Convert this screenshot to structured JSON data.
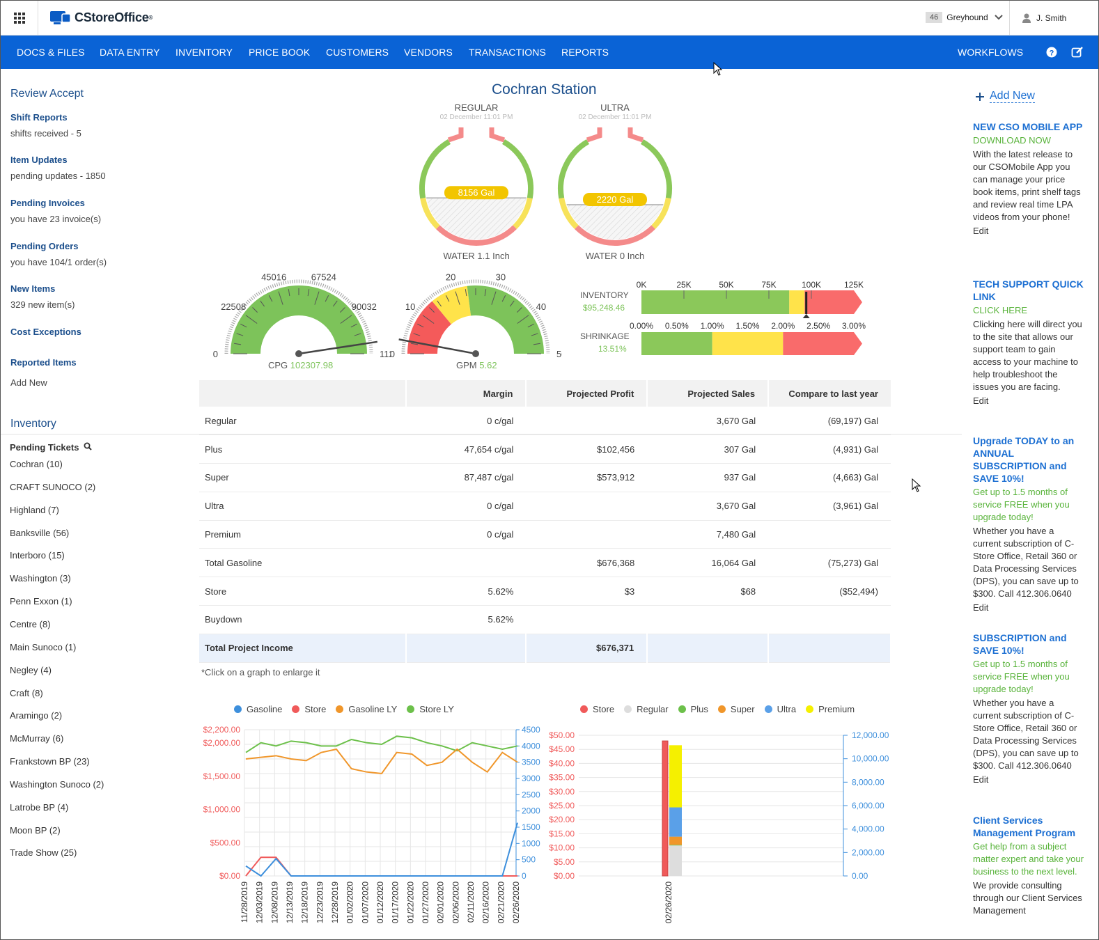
{
  "header": {
    "logo": "CStoreOffice",
    "logo_mark": "®",
    "store_count": "46",
    "store_name": "Greyhound",
    "user": "J. Smith"
  },
  "nav": [
    "DOCS & FILES",
    "DATA ENTRY",
    "INVENTORY",
    "PRICE BOOK",
    "CUSTOMERS",
    "VENDORS",
    "TRANSACTIONS",
    "REPORTS"
  ],
  "nav_right": "WORKFLOWS",
  "sidebar": {
    "review_title": "Review Accept",
    "items": [
      {
        "title": "Shift Reports",
        "text": "shifts received - 5"
      },
      {
        "title": "Item Updates",
        "text": "pending updates - 1850"
      },
      {
        "title": "Pending Invoices",
        "text": "you have 23 invoice(s)"
      },
      {
        "title": "Pending Orders",
        "text": "you have 104/1 order(s)"
      },
      {
        "title": "New Items",
        "text": "329 new item(s)"
      },
      {
        "title": "Cost Exceptions",
        "text": ""
      },
      {
        "title": "Reported Items",
        "text": "Add New"
      }
    ],
    "inventory_title": "Inventory",
    "pending_tickets": "Pending Tickets",
    "tickets": [
      "Cochran (10)",
      "CRAFT SUNOCO (2)",
      "Highland (7)",
      "Banksville (56)",
      "Interboro (15)",
      "Washington (3)",
      "Penn Exxon (1)",
      "Centre (8)",
      "Main Sunoco (1)",
      "Negley (4)",
      "Craft (8)",
      "Aramingo (2)",
      "McMurray (6)",
      "Frankstown BP (23)",
      "Washington Sunoco (2)",
      "Latrobe BP (4)",
      "Moon BP (2)",
      "Trade Show (25)"
    ]
  },
  "station": "Cochran Station",
  "tanks": [
    {
      "name": "REGULAR",
      "date": "02 December 11:01 PM",
      "volume": "8156 Gal",
      "water": "WATER 1.1 Inch",
      "fill": 0.45
    },
    {
      "name": "ULTRA",
      "date": "02 December 11:01 PM",
      "volume": "2220 Gal",
      "water": "WATER 0 Inch",
      "fill": 0.3
    }
  ],
  "cpg": {
    "label": "CPG",
    "value": "102307.98",
    "ticks": [
      "0",
      "22508",
      "45016",
      "67524",
      "90032",
      "1125"
    ],
    "min": 0,
    "max": 112540,
    "reading": 102307.98
  },
  "gpm": {
    "label": "GPM",
    "value": "5.62",
    "ticks": [
      "0",
      "10",
      "20",
      "30",
      "40",
      "50"
    ],
    "min": 0,
    "max": 50,
    "reading": 5.62
  },
  "bullets": [
    {
      "label": "INVENTORY",
      "value": "$95,248.46",
      "ticks": [
        "0K",
        "25K",
        "50K",
        "75K",
        "100K",
        "125K"
      ],
      "marker": 97000,
      "max": 125000,
      "bands": [
        87000,
        96000,
        125000
      ]
    },
    {
      "label": "SHRINKAGE",
      "value": "13.51%",
      "ticks": [
        "0.00%",
        "0.50%",
        "1.00%",
        "1.50%",
        "2.00%",
        "2.50%",
        "3.00%"
      ],
      "max": 3.0,
      "bands": [
        1.0,
        2.0,
        3.0
      ]
    }
  ],
  "table": {
    "headers": [
      "",
      "Margin",
      "Projected Profit",
      "Projected Sales",
      "Compare to last year"
    ],
    "rows": [
      [
        "Regular",
        "0 c/gal",
        "",
        "3,670 Gal",
        "(69,197) Gal"
      ],
      [
        "Plus",
        "47,654 c/gal",
        "$102,456",
        "307 Gal",
        "(4,931) Gal"
      ],
      [
        "Super",
        "87,487 c/gal",
        "$573,912",
        "937 Gal",
        "(4,663) Gal"
      ],
      [
        "Ultra",
        "0 c/gal",
        "",
        "3,670 Gal",
        "(3,961) Gal"
      ],
      [
        "Premium",
        "0 c/gal",
        "",
        "7,480 Gal",
        ""
      ],
      [
        "Total Gasoline",
        "",
        "$676,368",
        "16,064 Gal",
        "(75,273) Gal"
      ],
      [
        "Store",
        "5.62%",
        "$3",
        "$68",
        "($52,494)"
      ],
      [
        "Buydown",
        "5.62%",
        "",
        "",
        ""
      ]
    ],
    "total": [
      "Total Project Income",
      "",
      "$676,371",
      "",
      ""
    ]
  },
  "note": "*Click on a graph to enlarge it",
  "right": {
    "add_new": "Add New",
    "blocks": [
      {
        "h": "NEW CSO MOBILE APP",
        "g": "DOWNLOAD NOW",
        "t": "With the latest release to our CSOMobile App you can manage your price book items, print shelf tags and review real time LPA videos from your phone!",
        "e": "Edit"
      },
      {
        "h": "TECH SUPPORT QUICK LINK",
        "g": "CLICK HERE",
        "t": "Clicking here will direct you to the site that allows our support team to gain access to your machine to help troubleshoot the issues you are facing.",
        "e": "Edit"
      },
      {
        "h": "Upgrade TODAY to an ANNUAL SUBSCRIPTION and SAVE 10%!",
        "g": "Get up to 1.5 months of service FREE when you upgrade today!",
        "t": "Whether you have a current subscription of C-Store Office, Retail 360 or Data Processing Services (DPS), you can save up to $300. Call 412.306.0640",
        "e": "Edit"
      },
      {
        "h": "SUBSCRIPTION and SAVE 10%!",
        "g": "Get up to 1.5 months of service FREE when you upgrade today!",
        "t": "Whether you have a current subscription of C-Store Office, Retail 360 or Data Processing Services (DPS), you can save up to $300. Call 412.306.0640",
        "e": "Edit"
      },
      {
        "h": "Client Services Management Program",
        "g": "Get help from a subject matter expert and take your business to the next level.",
        "t": "We provide consulting through our Client Services Management",
        "e": ""
      }
    ]
  },
  "chart_data": [
    {
      "type": "line",
      "legend": [
        "Gasoline",
        "Store",
        "Gasoline LY",
        "Store LY"
      ],
      "colors": [
        "#3d8fdc",
        "#f05a5a",
        "#f0962a",
        "#6cc04a"
      ],
      "x": [
        "11/28/2019",
        "12/03/2019",
        "12/08/2019",
        "12/13/2019",
        "12/18/2019",
        "12/23/2019",
        "12/28/2019",
        "01/02/2020",
        "01/07/2020",
        "01/12/2020",
        "01/17/2020",
        "01/22/2020",
        "01/27/2020",
        "02/01/2020",
        "02/06/2020",
        "02/11/2020",
        "02/16/2020",
        "02/21/2020",
        "02/26/2020"
      ],
      "left_ticks": [
        "$2,200.00",
        "$2,000.00",
        "$1,500.00",
        "$1,000.00",
        "$500.00",
        "$0.00"
      ],
      "right_ticks": [
        "4500",
        "4000",
        "3500",
        "3000",
        "2500",
        "2000",
        "1500",
        "1000",
        "500",
        "0"
      ],
      "y_left": [
        0,
        2200
      ],
      "y_right": [
        0,
        4500
      ],
      "series": [
        {
          "name": "Store LY",
          "axis": "right",
          "values": [
            3800,
            4100,
            4000,
            4150,
            4100,
            4000,
            4000,
            4200,
            4100,
            4050,
            4300,
            4250,
            4100,
            4000,
            3850,
            4100,
            4000,
            3900,
            4000
          ]
        },
        {
          "name": "Gasoline LY",
          "axis": "right",
          "values": [
            3600,
            3650,
            3700,
            3600,
            3550,
            3800,
            3900,
            3300,
            3200,
            3150,
            3800,
            3750,
            3400,
            3500,
            3900,
            3500,
            3200,
            3800,
            3500
          ]
        },
        {
          "name": "Store",
          "axis": "left",
          "values": [
            0,
            280,
            280,
            0,
            0,
            0,
            0,
            0,
            0,
            0,
            0,
            0,
            0,
            0,
            0,
            0,
            0,
            0,
            0
          ]
        },
        {
          "name": "Gasoline",
          "axis": "left",
          "values": [
            150,
            0,
            260,
            0,
            0,
            0,
            0,
            0,
            0,
            0,
            0,
            0,
            0,
            0,
            0,
            0,
            0,
            0,
            800
          ]
        }
      ]
    },
    {
      "type": "bar",
      "legend": [
        "Store",
        "Regular",
        "Plus",
        "Super",
        "Ultra",
        "Premium"
      ],
      "colors": [
        "#f05a5a",
        "#dddddd",
        "#6cc04a",
        "#f0962a",
        "#5aa0e8",
        "#f5f000"
      ],
      "x": [
        "02/26/2020"
      ],
      "left_ticks": [
        "$50.00",
        "$45.00",
        "$40.00",
        "$35.00",
        "$30.00",
        "$25.00",
        "$20.00",
        "$15.00",
        "$10.00",
        "$5.00",
        "$0.00"
      ],
      "right_ticks": [
        "12,000.00",
        "10,000.00",
        "8,000.00",
        "6,000.00",
        "4,000.00",
        "2,000.00",
        "0.00"
      ],
      "store": 48,
      "stack": [
        {
          "name": "Regular",
          "value": 2600
        },
        {
          "name": "Plus",
          "value": 50
        },
        {
          "name": "Super",
          "value": 700
        },
        {
          "name": "Ultra",
          "value": 2500
        },
        {
          "name": "Premium",
          "value": 5300
        }
      ],
      "y_left": [
        0,
        50
      ],
      "y_right": [
        0,
        12000
      ]
    }
  ]
}
